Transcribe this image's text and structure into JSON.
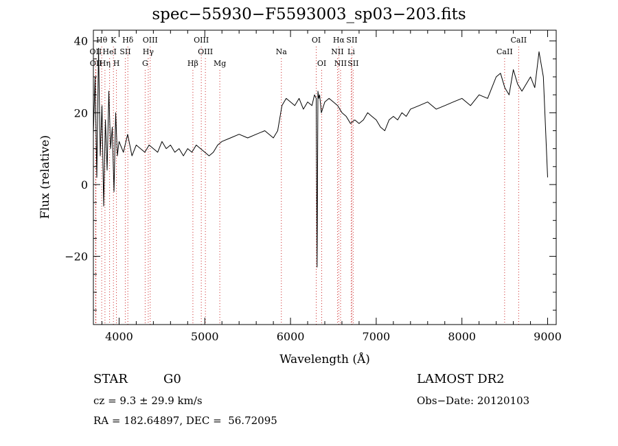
{
  "chart_data": {
    "type": "line",
    "title": "spec−55930−F5593003_sp03−203.fits",
    "xlabel": "Wavelength (Å)",
    "ylabel": "Flux (relative)",
    "xlim": [
      3700,
      9100
    ],
    "ylim": [
      -39,
      43
    ],
    "xticks": [
      4000,
      5000,
      6000,
      7000,
      8000,
      9000
    ],
    "xtick_labels": [
      "4000",
      "5000",
      "6000",
      "7000",
      "8000",
      "9000"
    ],
    "yticks": [
      40,
      20,
      0,
      -20
    ],
    "ytick_labels": [
      "40",
      "20",
      "0",
      "−20"
    ],
    "grid": false,
    "series": [
      {
        "x": [
          3700,
          3720,
          3740,
          3760,
          3780,
          3800,
          3820,
          3840,
          3860,
          3880,
          3900,
          3920,
          3940,
          3960,
          3980,
          4000,
          4050,
          4100,
          4150,
          4200,
          4250,
          4300,
          4350,
          4400,
          4450,
          4500,
          4550,
          4600,
          4650,
          4700,
          4750,
          4800,
          4850,
          4900,
          4950,
          5000,
          5050,
          5100,
          5150,
          5200,
          5300,
          5400,
          5500,
          5600,
          5700,
          5800,
          5850,
          5900,
          5950,
          6000,
          6050,
          6100,
          6150,
          6200,
          6250,
          6280,
          6300,
          6310,
          6320,
          6330,
          6340,
          6360,
          6400,
          6450,
          6500,
          6550,
          6600,
          6650,
          6700,
          6750,
          6800,
          6850,
          6900,
          6950,
          7000,
          7050,
          7100,
          7150,
          7200,
          7250,
          7300,
          7350,
          7400,
          7500,
          7600,
          7700,
          7800,
          7900,
          8000,
          8100,
          8200,
          8300,
          8400,
          8450,
          8500,
          8550,
          8600,
          8650,
          8700,
          8750,
          8800,
          8850,
          8900,
          8950,
          9000
        ],
        "y": [
          14,
          30,
          2,
          38,
          8,
          22,
          -6,
          18,
          4,
          26,
          10,
          16,
          -2,
          20,
          8,
          12,
          9,
          14,
          8,
          11,
          10,
          9,
          11,
          10,
          9,
          12,
          10,
          11,
          9,
          10,
          8,
          10,
          9,
          11,
          10,
          9,
          8,
          9,
          11,
          12,
          13,
          14,
          13,
          14,
          15,
          13,
          15,
          22,
          24,
          23,
          22,
          24,
          21,
          23,
          22,
          25,
          24,
          -23,
          26,
          24,
          25,
          20,
          23,
          24,
          23,
          22,
          20,
          19,
          17,
          18,
          17,
          18,
          20,
          19,
          18,
          16,
          15,
          18,
          19,
          18,
          20,
          19,
          21,
          22,
          23,
          21,
          22,
          23,
          24,
          22,
          25,
          24,
          30,
          31,
          27,
          25,
          32,
          28,
          26,
          28,
          30,
          27,
          37,
          30,
          2
        ],
        "line_color": "#000000"
      }
    ],
    "line_markers": [
      {
        "label": "Hθ",
        "x": 3797,
        "row": 1
      },
      {
        "label": "K",
        "x": 3934,
        "row": 1
      },
      {
        "label": "Hδ",
        "x": 4102,
        "row": 1
      },
      {
        "label": "OIII",
        "x": 4363,
        "row": 1
      },
      {
        "label": "OIII",
        "x": 4959,
        "row": 1
      },
      {
        "label": "OI",
        "x": 6300,
        "row": 1
      },
      {
        "label": "Hα",
        "x": 6563,
        "row": 1
      },
      {
        "label": "SII",
        "x": 6716,
        "row": 1
      },
      {
        "label": "CaII",
        "x": 8662,
        "row": 1
      },
      {
        "label": "OII",
        "x": 3727,
        "row": 2
      },
      {
        "label": "HeI",
        "x": 3889,
        "row": 2
      },
      {
        "label": "SII",
        "x": 4072,
        "row": 2
      },
      {
        "label": "Hγ",
        "x": 4340,
        "row": 2
      },
      {
        "label": "OIII",
        "x": 5007,
        "row": 2
      },
      {
        "label": "Na",
        "x": 5893,
        "row": 2
      },
      {
        "label": "NII",
        "x": 6548,
        "row": 2
      },
      {
        "label": "Li",
        "x": 6708,
        "row": 2
      },
      {
        "label": "CaII",
        "x": 8498,
        "row": 2
      },
      {
        "label": "OII",
        "x": 3729,
        "row": 3
      },
      {
        "label": "Hη",
        "x": 3835,
        "row": 3
      },
      {
        "label": "H",
        "x": 3969,
        "row": 3
      },
      {
        "label": "G",
        "x": 4304,
        "row": 3
      },
      {
        "label": "Hβ",
        "x": 4861,
        "row": 3
      },
      {
        "label": "Mg",
        "x": 5175,
        "row": 3
      },
      {
        "label": "OI",
        "x": 6364,
        "row": 3
      },
      {
        "label": "NII",
        "x": 6584,
        "row": 3
      },
      {
        "label": "SII",
        "x": 6731,
        "row": 3
      }
    ]
  },
  "info": {
    "class": "STAR",
    "subclass": "G0",
    "survey": "LAMOST DR2",
    "cz": "cz = 9.3 ± 29.9 km/s",
    "obs_date": "Obs−Date: 20120103",
    "radec": "RA = 182.64897, DEC =  56.72095"
  }
}
